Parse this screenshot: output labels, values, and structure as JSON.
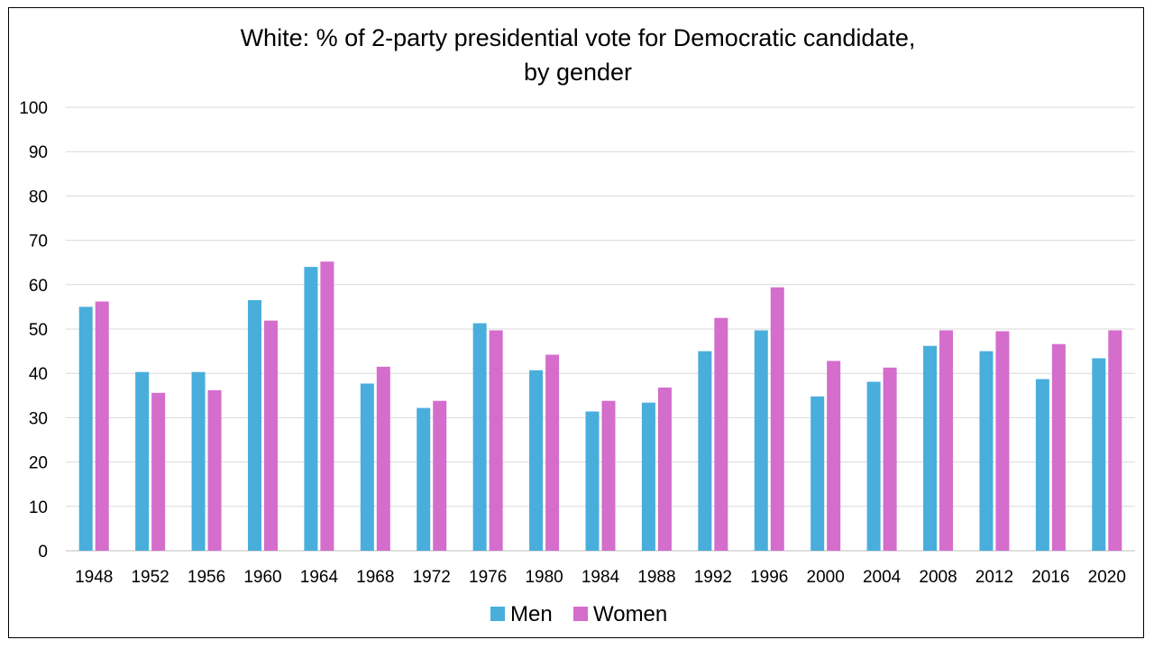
{
  "chart_data": {
    "type": "bar",
    "title_lines": [
      "White: % of 2-party presidential vote for Democratic candidate,",
      "by gender"
    ],
    "xlabel": "",
    "ylabel": "",
    "ylim": [
      0,
      100
    ],
    "yticks": [
      0,
      10,
      20,
      30,
      40,
      50,
      60,
      70,
      80,
      90,
      100
    ],
    "grid": true,
    "legend_position": "bottom",
    "categories": [
      "1948",
      "1952",
      "1956",
      "1960",
      "1964",
      "1968",
      "1972",
      "1976",
      "1980",
      "1984",
      "1988",
      "1992",
      "1996",
      "2000",
      "2004",
      "2008",
      "2012",
      "2016",
      "2020"
    ],
    "series": [
      {
        "name": "Men",
        "color": "#49AEDC",
        "values": [
          55.0,
          40.3,
          40.3,
          56.5,
          64.0,
          37.7,
          32.2,
          51.3,
          40.7,
          31.4,
          33.4,
          45.0,
          49.7,
          34.8,
          38.1,
          46.2,
          45.0,
          38.7,
          43.4
        ]
      },
      {
        "name": "Women",
        "color": "#D46DCC",
        "values": [
          56.2,
          35.6,
          36.2,
          51.9,
          65.2,
          41.5,
          33.8,
          49.7,
          44.2,
          33.8,
          36.8,
          52.5,
          59.4,
          42.8,
          41.3,
          49.7,
          49.5,
          46.6,
          49.7
        ]
      }
    ]
  }
}
